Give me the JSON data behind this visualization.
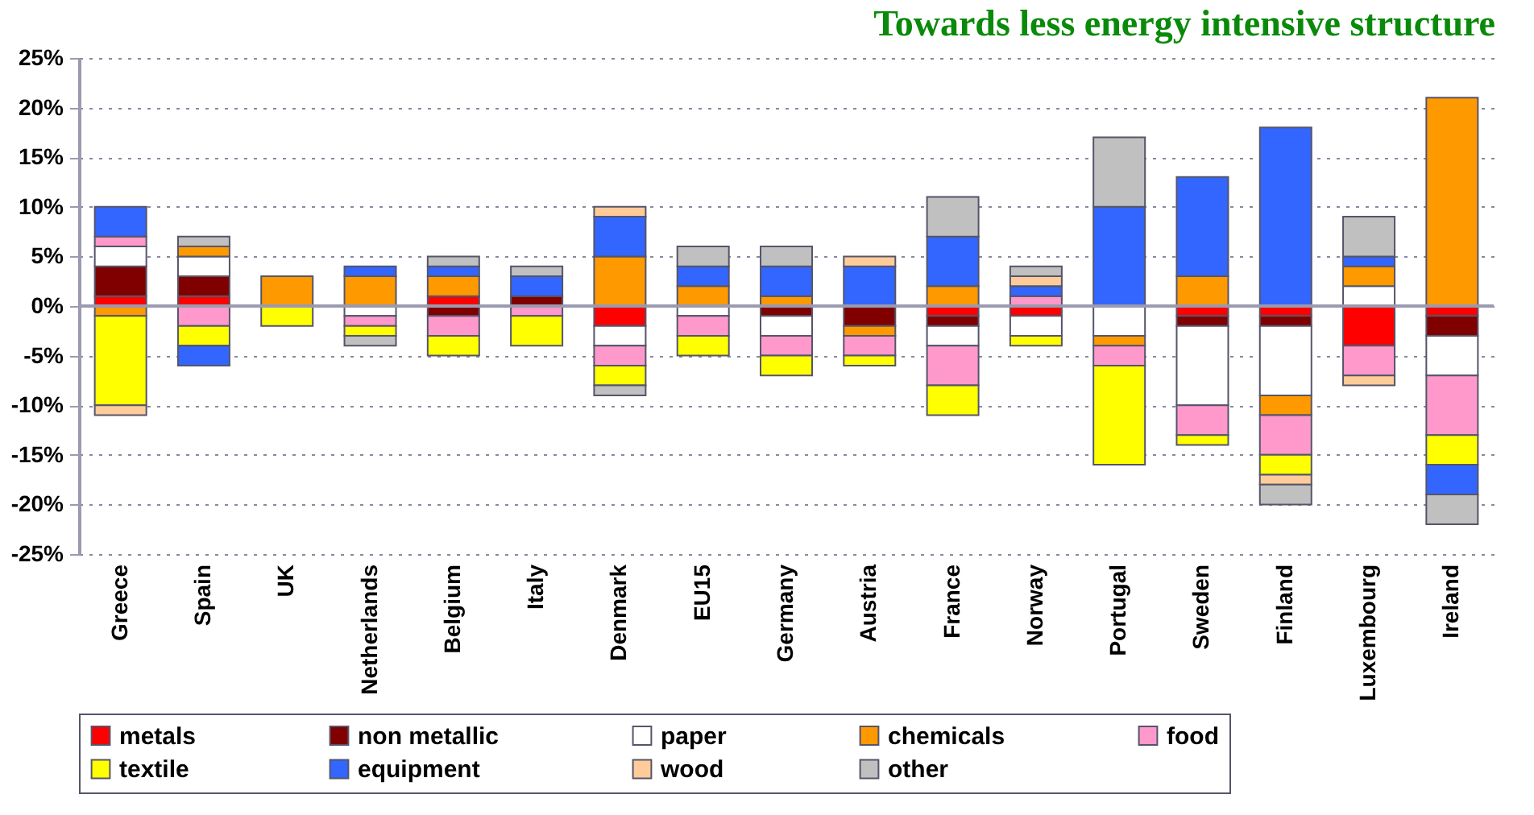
{
  "chart_data": {
    "type": "bar",
    "stacked": true,
    "title": "Towards less energy intensive structure",
    "categories": [
      "Greece",
      "Spain",
      "UK",
      "Netherlands",
      "Belgium",
      "Italy",
      "Denmark",
      "EU15",
      "Germany",
      "Austria",
      "France",
      "Norway",
      "Portugal",
      "Sweden",
      "Finland",
      "Luxembourg",
      "Ireland"
    ],
    "series": [
      {
        "name": "metals",
        "color": "#ff0000",
        "values": [
          1,
          1,
          null,
          null,
          1,
          null,
          -2,
          null,
          null,
          null,
          -1,
          -1,
          null,
          -1,
          -1,
          -4,
          -1
        ]
      },
      {
        "name": "non metallic",
        "color": "#800000",
        "values": [
          3,
          2,
          null,
          null,
          -1,
          1,
          null,
          null,
          -1,
          -2,
          -1,
          null,
          null,
          -1,
          -1,
          null,
          -2
        ]
      },
      {
        "name": "paper",
        "color": "#ffffff",
        "values": [
          2,
          2,
          null,
          -1,
          null,
          null,
          -2,
          -1,
          -2,
          null,
          -2,
          -2,
          -3,
          -8,
          -7,
          2,
          -4
        ]
      },
      {
        "name": "chemicals",
        "color": "#ff9900",
        "values": [
          -1,
          1,
          3,
          3,
          2,
          null,
          5,
          2,
          1,
          -1,
          2,
          null,
          -1,
          3,
          -2,
          2,
          21
        ]
      },
      {
        "name": "food",
        "color": "#ff99cc",
        "values": [
          1,
          -2,
          null,
          -1,
          -2,
          -1,
          -2,
          -2,
          -2,
          -2,
          -4,
          1,
          -2,
          -3,
          -4,
          -3,
          -6
        ]
      },
      {
        "name": "textile",
        "color": "#ffff00",
        "values": [
          -9,
          -2,
          -2,
          -1,
          -2,
          -3,
          -2,
          -2,
          -2,
          -1,
          -3,
          -1,
          -10,
          -1,
          -2,
          null,
          -3
        ]
      },
      {
        "name": "equipment",
        "color": "#3366ff",
        "values": [
          3,
          -2,
          null,
          1,
          1,
          2,
          4,
          2,
          3,
          4,
          5,
          1,
          10,
          10,
          18,
          1,
          -3
        ]
      },
      {
        "name": "wood",
        "color": "#ffcc99",
        "values": [
          -1,
          null,
          null,
          null,
          null,
          null,
          1,
          null,
          null,
          1,
          null,
          1,
          null,
          null,
          -1,
          -1,
          null
        ]
      },
      {
        "name": "other",
        "color": "#c0c0c0",
        "values": [
          null,
          1,
          null,
          -1,
          1,
          1,
          -1,
          2,
          2,
          null,
          4,
          1,
          7,
          null,
          -2,
          4,
          -3
        ]
      }
    ],
    "ylim": [
      -25,
      25
    ],
    "yticks": [
      {
        "value": -25,
        "label": "-25%"
      },
      {
        "value": -20,
        "label": "-20%"
      },
      {
        "value": -15,
        "label": "-15%"
      },
      {
        "value": -10,
        "label": "-10%"
      },
      {
        "value": -5,
        "label": "-5%"
      },
      {
        "value": 0,
        "label": "0%"
      },
      {
        "value": 5,
        "label": "5%"
      },
      {
        "value": 10,
        "label": "10%"
      },
      {
        "value": 15,
        "label": "15%"
      },
      {
        "value": 20,
        "label": "20%"
      },
      {
        "value": 25,
        "label": "25%"
      }
    ],
    "grid": "y",
    "legend": "bottom"
  }
}
